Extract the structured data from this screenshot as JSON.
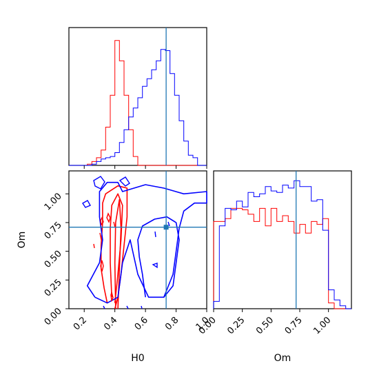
{
  "chart_data": {
    "type": "corner",
    "parameters": [
      "H0",
      "Om"
    ],
    "truth": {
      "H0": 0.75,
      "Om": 0.7
    },
    "colors": {
      "red": "#ff0000",
      "blue": "#0000ff",
      "truth": "#1f77b4"
    },
    "panels": [
      {
        "name": "H0 marginal histogram",
        "type": "histogram",
        "x_range": [
          0.1,
          1.0
        ],
        "xlabel": "",
        "bin_edges": [
          0.1,
          0.13,
          0.16,
          0.19,
          0.22,
          0.25,
          0.28,
          0.31,
          0.34,
          0.37,
          0.4,
          0.43,
          0.46,
          0.49,
          0.52,
          0.55,
          0.58,
          0.61,
          0.64,
          0.67,
          0.7,
          0.73,
          0.76,
          0.79,
          0.82,
          0.85,
          0.88,
          0.91,
          0.94,
          0.97,
          1.0
        ],
        "series": [
          {
            "name": "red",
            "counts": [
              0,
              0,
              0,
              0,
              0.01,
              0.03,
              0.06,
              0.12,
              0.3,
              0.55,
              0.98,
              0.82,
              0.55,
              0.28,
              0.07,
              0,
              0,
              0,
              0,
              0,
              0,
              0,
              0,
              0,
              0,
              0,
              0,
              0,
              0,
              0
            ]
          },
          {
            "name": "blue",
            "counts": [
              0,
              0,
              0,
              0,
              0,
              0.01,
              0.03,
              0.05,
              0.06,
              0.07,
              0.1,
              0.18,
              0.28,
              0.38,
              0.45,
              0.53,
              0.62,
              0.68,
              0.75,
              0.82,
              0.91,
              0.9,
              0.72,
              0.55,
              0.35,
              0.19,
              0.08,
              0.06,
              0,
              0
            ]
          }
        ]
      },
      {
        "name": "Om marginal histogram",
        "type": "histogram",
        "x_range": [
          0.0,
          1.2
        ],
        "xlabel": "Om",
        "x_ticks": [
          "0.00",
          "0.25",
          "0.50",
          "0.75",
          "1.00"
        ],
        "bin_edges": [
          0.0,
          0.05,
          0.1,
          0.15,
          0.2,
          0.25,
          0.3,
          0.35,
          0.4,
          0.45,
          0.5,
          0.55,
          0.6,
          0.65,
          0.7,
          0.75,
          0.8,
          0.85,
          0.9,
          0.95,
          1.0,
          1.05,
          1.1,
          1.15,
          1.2
        ],
        "series": [
          {
            "name": "red",
            "counts": [
              0.6,
              0.6,
              0.62,
              0.69,
              0.69,
              0.68,
              0.65,
              0.6,
              0.69,
              0.57,
              0.69,
              0.6,
              0.64,
              0.6,
              0.52,
              0.58,
              0.52,
              0.6,
              0.58,
              0.62,
              0.04,
              0,
              0,
              0
            ]
          },
          {
            "name": "blue",
            "counts": [
              0.05,
              0.57,
              0.69,
              0.68,
              0.74,
              0.7,
              0.8,
              0.77,
              0.79,
              0.84,
              0.81,
              0.8,
              0.85,
              0.83,
              0.88,
              0.84,
              0.84,
              0.74,
              0.75,
              0.54,
              0.13,
              0.06,
              0.02,
              0
            ]
          }
        ]
      },
      {
        "name": "H0 vs Om 2D contours",
        "type": "contour",
        "x_range": [
          0.1,
          1.0
        ],
        "y_range": [
          0.0,
          1.2
        ],
        "xlabel": "H0",
        "ylabel": "Om",
        "x_ticks": [
          "0.2",
          "0.4",
          "0.6",
          "0.8",
          "1.0"
        ],
        "y_ticks": [
          "0.00",
          "0.25",
          "0.50",
          "0.75",
          "1.00"
        ],
        "series": [
          {
            "name": "red",
            "contours": [
              [
                [
                  0.35,
                  0.05
                ],
                [
                  0.33,
                  0.18
                ],
                [
                  0.31,
                  0.35
                ],
                [
                  0.31,
                  0.55
                ],
                [
                  0.32,
                  0.75
                ],
                [
                  0.32,
                  0.92
                ],
                [
                  0.34,
                  1.0
                ],
                [
                  0.42,
                  1.07
                ],
                [
                  0.48,
                  1.05
                ],
                [
                  0.48,
                  0.8
                ],
                [
                  0.46,
                  0.55
                ],
                [
                  0.44,
                  0.3
                ],
                [
                  0.42,
                  0.1
                ],
                [
                  0.4,
                  0.0
                ]
              ],
              [
                [
                  0.38,
                  0.1
                ],
                [
                  0.37,
                  0.4
                ],
                [
                  0.37,
                  0.7
                ],
                [
                  0.38,
                  0.9
                ],
                [
                  0.42,
                  1.0
                ],
                [
                  0.45,
                  0.9
                ],
                [
                  0.44,
                  0.6
                ],
                [
                  0.42,
                  0.3
                ],
                [
                  0.4,
                  0.05
                ]
              ],
              [
                [
                  0.405,
                  0.0
                ],
                [
                  0.4,
                  0.4
                ],
                [
                  0.405,
                  0.75
                ],
                [
                  0.43,
                  0.95
                ],
                [
                  0.44,
                  0.7
                ],
                [
                  0.43,
                  0.35
                ],
                [
                  0.42,
                  0.0
                ]
              ]
            ]
          },
          {
            "name": "blue",
            "contours": [
              [
                [
                  0.27,
                  0.1
                ],
                [
                  0.22,
                  0.2
                ],
                [
                  0.3,
                  0.4
                ],
                [
                  0.32,
                  0.6
                ],
                [
                  0.3,
                  0.8
                ],
                [
                  0.3,
                  1.02
                ],
                [
                  0.35,
                  1.1
                ],
                [
                  0.42,
                  1.1
                ],
                [
                  0.45,
                  1.02
                ],
                [
                  0.6,
                  1.08
                ],
                [
                  0.72,
                  1.05
                ],
                [
                  0.85,
                  1.0
                ],
                [
                  1.0,
                  1.02
                ],
                [
                  1.0,
                  0.92
                ],
                [
                  0.92,
                  0.92
                ],
                [
                  0.85,
                  0.85
                ],
                [
                  0.82,
                  0.7
                ],
                [
                  0.8,
                  0.5
                ],
                [
                  0.78,
                  0.3
                ],
                [
                  0.72,
                  0.1
                ],
                [
                  0.62,
                  0.1
                ],
                [
                  0.55,
                  0.3
                ],
                [
                  0.5,
                  0.6
                ],
                [
                  0.45,
                  0.4
                ],
                [
                  0.42,
                  0.1
                ],
                [
                  0.35,
                  0.05
                ],
                [
                  0.27,
                  0.1
                ]
              ],
              [
                [
                  0.6,
                  0.1
                ],
                [
                  0.58,
                  0.3
                ],
                [
                  0.56,
                  0.45
                ],
                [
                  0.55,
                  0.6
                ],
                [
                  0.58,
                  0.72
                ],
                [
                  0.66,
                  0.78
                ],
                [
                  0.74,
                  0.8
                ],
                [
                  0.8,
                  0.75
                ],
                [
                  0.82,
                  0.6
                ],
                [
                  0.8,
                  0.4
                ],
                [
                  0.78,
                  0.2
                ],
                [
                  0.72,
                  0.1
                ]
              ]
            ]
          }
        ]
      }
    ]
  }
}
